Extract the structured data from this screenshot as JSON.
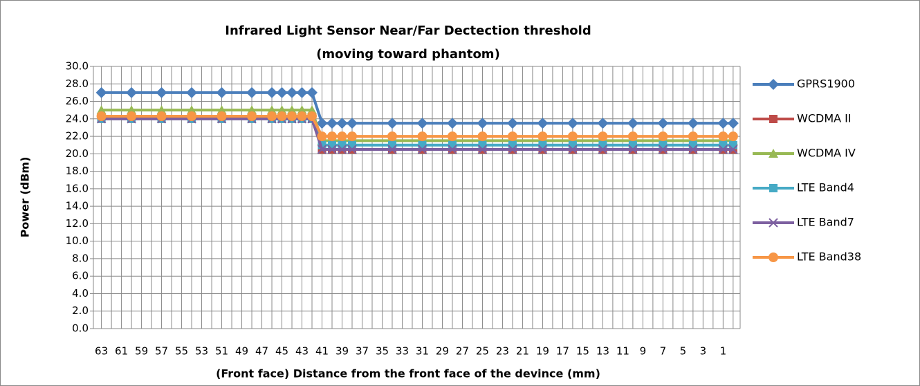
{
  "chart_data": {
    "type": "line",
    "title": [
      "Infrared Light Sensor Near/Far Dectection threshold",
      "(moving toward phantom)"
    ],
    "x_label": "(Front face) Distance from the front face of the devince (mm)",
    "y_label": "Power (dBm)",
    "x": [
      63,
      60,
      57,
      54,
      51,
      48,
      46,
      45,
      44,
      43,
      42,
      41,
      40,
      39,
      38,
      34,
      31,
      28,
      25,
      22,
      19,
      16,
      13,
      10,
      7,
      4,
      1,
      0
    ],
    "xlim": [
      63.8,
      -0.7
    ],
    "xticks": [
      63,
      61,
      59,
      57,
      55,
      53,
      51,
      49,
      47,
      45,
      43,
      41,
      39,
      37,
      35,
      33,
      31,
      29,
      27,
      25,
      23,
      21,
      19,
      17,
      15,
      13,
      11,
      9,
      7,
      5,
      3,
      1
    ],
    "ylim": [
      0,
      30
    ],
    "yticks": [
      {
        "value": 0,
        "label": "0.0"
      },
      {
        "value": 2,
        "label": "2.0"
      },
      {
        "value": 4,
        "label": "4.0"
      },
      {
        "value": 6,
        "label": "6.0"
      },
      {
        "value": 8,
        "label": "8.0"
      },
      {
        "value": 10,
        "label": "10.0"
      },
      {
        "value": 12,
        "label": "12.0"
      },
      {
        "value": 14,
        "label": "14.0"
      },
      {
        "value": 16,
        "label": "16.0"
      },
      {
        "value": 18,
        "label": "18.0"
      },
      {
        "value": 20,
        "label": "20.0"
      },
      {
        "value": 22,
        "label": "22.0"
      },
      {
        "value": 24,
        "label": "24.0"
      },
      {
        "value": 26,
        "label": "26.0"
      },
      {
        "value": 28,
        "label": "28.0"
      },
      {
        "value": 30,
        "label": "30.0"
      }
    ],
    "grid": true,
    "legend": "right",
    "series": [
      {
        "name": "GPRS1900",
        "color": "#4a7ebb",
        "marker": "diamond",
        "values": [
          27,
          27,
          27,
          27,
          27,
          27,
          27,
          27,
          27,
          27,
          27,
          23.5,
          23.5,
          23.5,
          23.5,
          23.5,
          23.5,
          23.5,
          23.5,
          23.5,
          23.5,
          23.5,
          23.5,
          23.5,
          23.5,
          23.5,
          23.5,
          23.5
        ]
      },
      {
        "name": "WCDMA II",
        "color": "#be4b48",
        "marker": "square",
        "values": [
          24,
          24,
          24,
          24,
          24,
          24,
          24,
          24,
          24,
          24,
          24,
          20.5,
          20.5,
          20.5,
          20.5,
          20.5,
          20.5,
          20.5,
          20.5,
          20.5,
          20.5,
          20.5,
          20.5,
          20.5,
          20.5,
          20.5,
          20.5,
          20.5
        ]
      },
      {
        "name": "WCDMA IV",
        "color": "#98b954",
        "marker": "triangle",
        "values": [
          25,
          25,
          25,
          25,
          25,
          25,
          25,
          25,
          25,
          25,
          25,
          21.5,
          21.5,
          21.5,
          21.5,
          21.5,
          21.5,
          21.5,
          21.5,
          21.5,
          21.5,
          21.5,
          21.5,
          21.5,
          21.5,
          21.5,
          21.5,
          21.5
        ]
      },
      {
        "name": "LTE Band4",
        "color": "#46aac5",
        "marker": "square",
        "values": [
          24,
          24,
          24,
          24,
          24,
          24,
          24,
          24,
          24,
          24,
          24,
          21,
          21,
          21,
          21,
          21,
          21,
          21,
          21,
          21,
          21,
          21,
          21,
          21,
          21,
          21,
          21,
          21
        ]
      },
      {
        "name": "LTE Band7",
        "color": "#7d60a0",
        "marker": "x",
        "values": [
          24,
          24,
          24,
          24,
          24,
          24,
          24,
          24,
          24,
          24,
          24,
          20.5,
          20.5,
          20.5,
          20.5,
          20.5,
          20.5,
          20.5,
          20.5,
          20.5,
          20.5,
          20.5,
          20.5,
          20.5,
          20.5,
          20.5,
          20.5,
          20.5
        ]
      },
      {
        "name": "LTE Band38",
        "color": "#f79646",
        "marker": "circle",
        "values": [
          24.3,
          24.3,
          24.3,
          24.3,
          24.3,
          24.3,
          24.3,
          24.3,
          24.3,
          24.3,
          24.3,
          22,
          22,
          22,
          22,
          22,
          22,
          22,
          22,
          22,
          22,
          22,
          22,
          22,
          22,
          22,
          22,
          22
        ]
      }
    ]
  }
}
